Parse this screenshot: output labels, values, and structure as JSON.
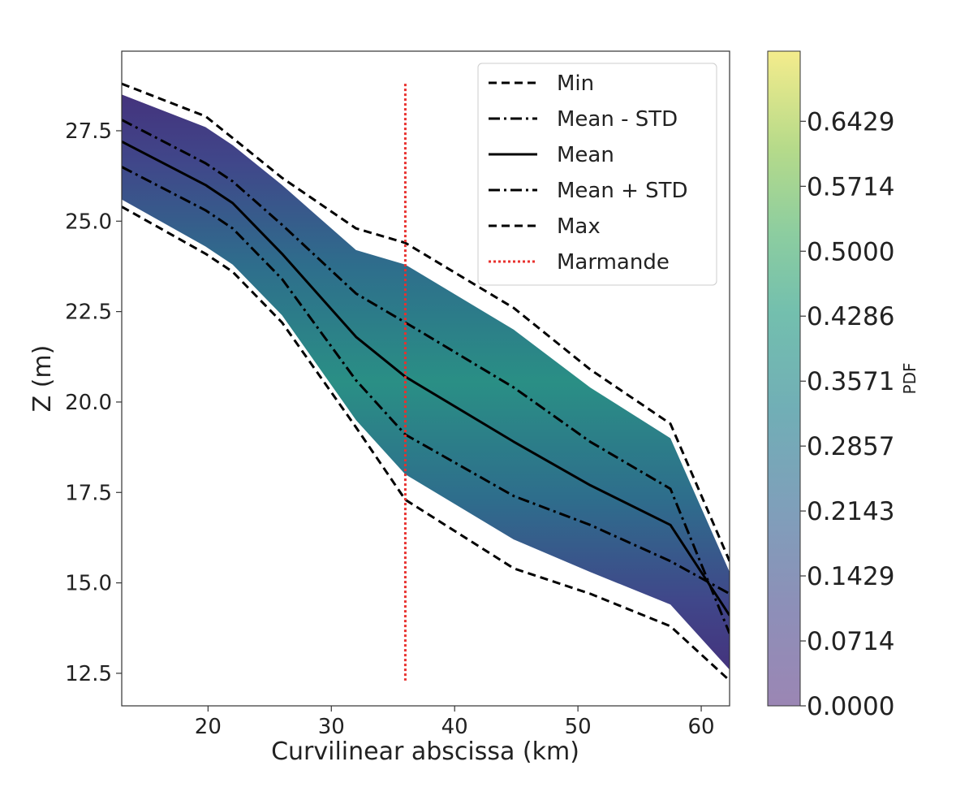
{
  "chart_data": {
    "type": "line",
    "title": "",
    "xlabel": "Curvilinear abscissa (km)",
    "ylabel": "Z (m)",
    "xlim": [
      13.0,
      62.3
    ],
    "ylim": [
      11.6,
      29.7
    ],
    "xticks": [
      20,
      30,
      40,
      50,
      60
    ],
    "xtick_labels": [
      "20",
      "30",
      "40",
      "50",
      "60"
    ],
    "yticks": [
      12.5,
      15.0,
      17.5,
      20.0,
      22.5,
      25.0,
      27.5
    ],
    "ytick_labels": [
      "12.5",
      "15.0",
      "17.5",
      "20.0",
      "22.5",
      "25.0",
      "27.5"
    ],
    "x": [
      13,
      19.8,
      22,
      26,
      32,
      36,
      44.8,
      51,
      57.5,
      62.3
    ],
    "series": [
      {
        "name": "Min",
        "style": "dashed",
        "values": [
          28.8,
          27.9,
          27.3,
          26.2,
          24.8,
          24.4,
          22.6,
          20.9,
          19.4,
          15.6
        ]
      },
      {
        "name": "Mean - STD",
        "style": "dashdot",
        "values": [
          27.8,
          26.6,
          26.1,
          24.9,
          23.0,
          22.2,
          20.4,
          18.9,
          17.6,
          13.6
        ]
      },
      {
        "name": "Mean",
        "style": "solid",
        "values": [
          27.2,
          26.0,
          25.5,
          24.1,
          21.8,
          20.7,
          18.9,
          17.7,
          16.6,
          14.1
        ]
      },
      {
        "name": "Mean + STD",
        "style": "dashdot",
        "values": [
          26.5,
          25.3,
          24.8,
          23.4,
          20.6,
          19.1,
          17.4,
          16.6,
          15.6,
          14.7
        ]
      },
      {
        "name": "Max",
        "style": "dashed",
        "values": [
          25.4,
          24.1,
          23.6,
          22.2,
          19.3,
          17.3,
          15.4,
          14.7,
          13.8,
          12.3
        ]
      }
    ],
    "band_upper": [
      28.5,
      27.6,
      27.1,
      26.0,
      24.2,
      23.8,
      22.0,
      20.4,
      19.0,
      15.3
    ],
    "band_lower": [
      25.6,
      24.3,
      23.8,
      22.4,
      19.5,
      18.0,
      16.2,
      15.3,
      14.4,
      12.6
    ],
    "marmande": {
      "name": "Marmande",
      "x": 36,
      "ymin": 12.3,
      "ymax": 28.8,
      "style": "dotted"
    },
    "legend": [
      "Min",
      "Mean - STD",
      "Mean",
      "Mean + STD",
      "Max",
      "Marmande"
    ],
    "legend_position": "top-right",
    "colorbar": {
      "label": "PDF",
      "min": 0.0,
      "max": 0.72,
      "ticks": [
        0.0,
        0.0714,
        0.1429,
        0.2143,
        0.2857,
        0.3571,
        0.4286,
        0.5,
        0.5714,
        0.6429
      ],
      "tick_labels": [
        "0.0000",
        "0.0714",
        "0.1429",
        "0.2143",
        "0.2857",
        "0.3571",
        "0.4286",
        "0.5000",
        "0.5714",
        "0.6429"
      ],
      "colormap": "viridis"
    },
    "colors": {
      "min_max": "#000000",
      "std": "#000000",
      "mean": "#000000",
      "marmande": "#e8312e"
    }
  }
}
